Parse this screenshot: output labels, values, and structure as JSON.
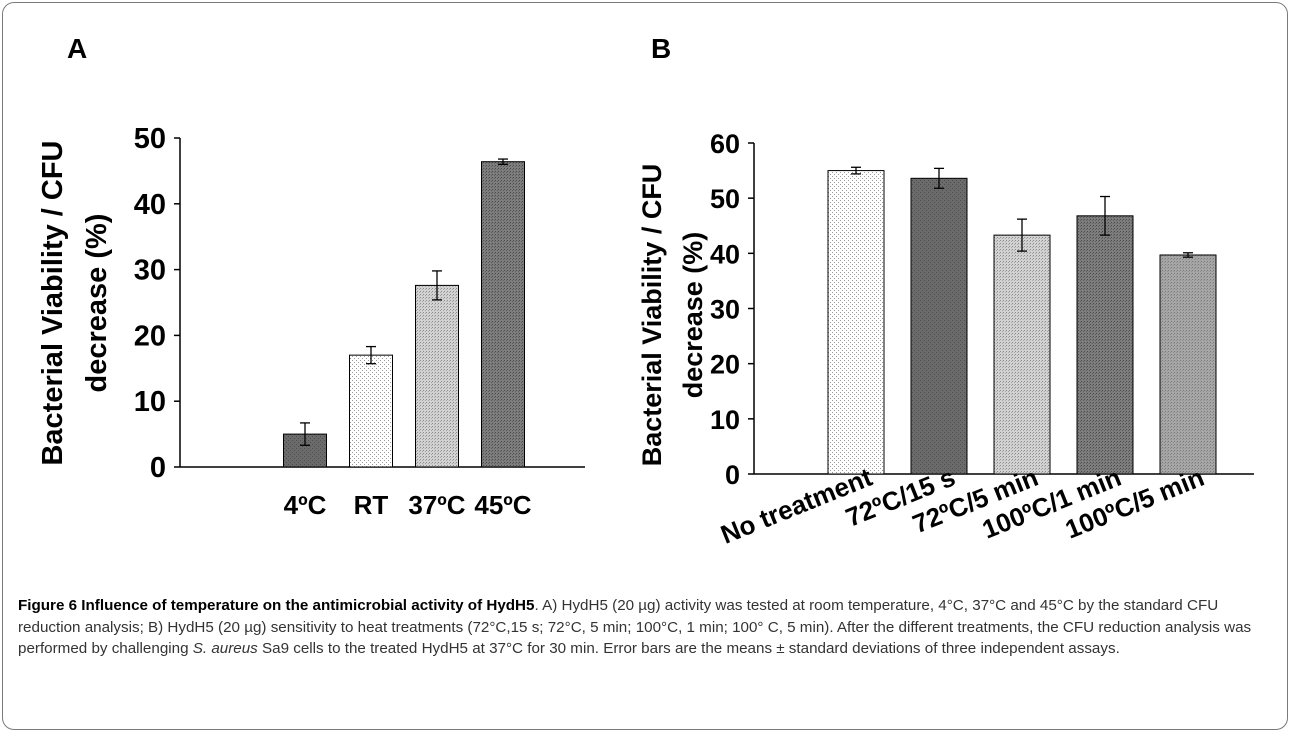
{
  "panel_a_letter": "A",
  "panel_b_letter": "B",
  "chart_data": [
    {
      "type": "bar",
      "panel": "A",
      "ylabel_line1": "Bacterial Viability / CFU",
      "ylabel_line2": "decrease (%)",
      "ylim": [
        0,
        50
      ],
      "yticks": [
        0,
        10,
        20,
        30,
        40,
        50
      ],
      "grid": false,
      "categories": [
        "4ºC",
        "RT",
        "37ºC",
        "45ºC"
      ],
      "values": [
        5.0,
        17.0,
        27.6,
        46.4
      ],
      "errors": [
        1.7,
        1.3,
        2.2,
        0.4
      ],
      "fills": [
        "dark",
        "light-dots",
        "medium-dots",
        "dark-dots"
      ]
    },
    {
      "type": "bar",
      "panel": "B",
      "ylabel_line1": "Bacterial Viability / CFU",
      "ylabel_line2": "decrease (%)",
      "ylim": [
        0,
        60
      ],
      "yticks": [
        0,
        10,
        20,
        30,
        40,
        50,
        60
      ],
      "grid": false,
      "categories": [
        "No treatment",
        "72ºC/15 s",
        "72ºC/5 min",
        "100ºC/1 min",
        "100ºC/5 min"
      ],
      "values": [
        55.0,
        53.6,
        43.3,
        46.8,
        39.7
      ],
      "errors": [
        0.6,
        1.8,
        2.9,
        3.5,
        0.4
      ],
      "fills": [
        "light-dots",
        "dark",
        "medium-dots",
        "dark-dots",
        "medium-gray-dots"
      ]
    }
  ],
  "caption": {
    "figure_label": "Figure 6 Influence of temperature on the antimicrobial activity of HydH5",
    "text_part1": ". A) HydH5 (20 µg) activity was tested at room temperature, 4°C, 37°C and 45°C by the standard CFU reduction analysis; B) HydH5 (20 µg) sensitivity to heat treatments (72°C,15 s; 72°C, 5 min; 100°C, 1 min; 100° C, 5 min). After the different treatments, the CFU reduction analysis was performed by challenging ",
    "species": "S. aureus",
    "text_part2": " Sa9 cells to the treated HydH5 at 37°C for 30 min. Error bars are the means ± standard deviations of three independent assays."
  }
}
